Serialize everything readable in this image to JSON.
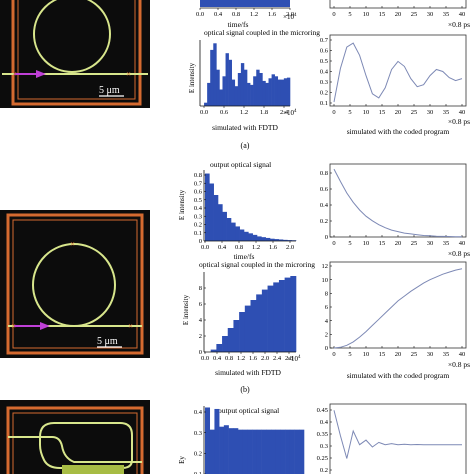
{
  "panels": [
    {
      "caption": "(a)",
      "scale_label": "5 μm",
      "fdtd_bottom_title": "optical signal coupled in the microring",
      "fdtd_bottom_ylabel": "E intensity",
      "fdtd_top_xlabel": "time/fs",
      "fdtd_top_xticks": [
        "0.0",
        "0.4",
        "0.8",
        "1.2",
        "1.6",
        "2.0"
      ],
      "fdtd_top_exp": "×10",
      "fdtd_exp_sup": "4",
      "fdtd_bottom_xticks": [
        "0.0",
        "0.6",
        "1.2",
        "1.8",
        "2.4"
      ],
      "fdtd_bottom_exp": "×10",
      "fdtd_caption": "simulated with FDTD",
      "code_top_xticks": [
        "0",
        "5",
        "10",
        "15",
        "20",
        "25",
        "30",
        "35",
        "40"
      ],
      "code_top_unit": "×0.8 ps",
      "code_bottom_yticks": [
        "0.1",
        "0.2",
        "0.3",
        "0.4",
        "0.5",
        "0.6",
        "0.7"
      ],
      "code_bottom_xticks": [
        "0",
        "5",
        "10",
        "15",
        "20",
        "25",
        "30",
        "35",
        "40"
      ],
      "code_bottom_unit": "×0.8 ps",
      "code_caption": "simulated with the coded program"
    },
    {
      "caption": "(b)",
      "scale_label": "5 μm",
      "fdtd_top_title": "output optical signal",
      "fdtd_top_ylabel": "E intensity",
      "fdtd_top_yticks": [
        "0",
        "0.1",
        "0.2",
        "0.3",
        "0.4",
        "0.5",
        "0.6",
        "0.7",
        "0.8"
      ],
      "fdtd_top_xlabel": "time/fs",
      "fdtd_top_xticks": [
        "0.0",
        "0.4",
        "0.8",
        "1.2",
        "1.6",
        "2.0"
      ],
      "fdtd_bottom_title": "optical signal coupled in the microring",
      "fdtd_bottom_ylabel": "E intensity",
      "fdtd_bottom_yticks": [
        "0",
        "2",
        "4",
        "6",
        "8"
      ],
      "fdtd_bottom_xticks": [
        "0.0",
        "0.4",
        "0.8",
        "1.2",
        "1.6",
        "2.0",
        "2.4",
        "2.8"
      ],
      "fdtd_bottom_exp": "×10",
      "fdtd_exp_sup": "4",
      "fdtd_caption": "simulated with FDTD",
      "code_top_yticks": [
        "0",
        "0.2",
        "0.4",
        "0.6",
        "0.8"
      ],
      "code_top_xticks": [
        "0",
        "5",
        "10",
        "15",
        "20",
        "25",
        "30",
        "35",
        "40"
      ],
      "code_top_unit": "×0.8 ps",
      "code_bottom_yticks": [
        "0",
        "2",
        "4",
        "6",
        "8",
        "10",
        "12"
      ],
      "code_bottom_xticks": [
        "0",
        "5",
        "10",
        "15",
        "20",
        "25",
        "30",
        "35",
        "40"
      ],
      "code_bottom_unit": "×0.8 ps",
      "code_caption": "simulated with the coded program"
    },
    {
      "fdtd_top_title": "output optical signal",
      "fdtd_top_ylabel": "Ey",
      "fdtd_top_yticks": [
        "0.1",
        "0.2",
        "0.3",
        "0.4"
      ],
      "code_top_yticks": [
        "0.2",
        "0.25",
        "0.3",
        "0.35",
        "0.4",
        "0.45"
      ]
    }
  ],
  "chart_data": [
    {
      "type": "area",
      "panel": "a",
      "title": "optical signal coupled in the microring",
      "ylabel": "E intensity",
      "xlabel": "",
      "x_exponent": "×10^4",
      "xlim": [
        0,
        2.8
      ],
      "x": [
        0.0,
        0.1,
        0.2,
        0.3,
        0.4,
        0.5,
        0.6,
        0.7,
        0.8,
        0.9,
        1.0,
        1.1,
        1.2,
        1.3,
        1.4,
        1.5,
        1.6,
        1.7,
        1.8,
        1.9,
        2.0,
        2.1,
        2.2,
        2.3,
        2.4,
        2.5,
        2.6,
        2.7,
        2.8
      ],
      "values": [
        0.0,
        0.05,
        0.35,
        0.85,
        0.95,
        0.55,
        0.25,
        0.45,
        0.8,
        0.7,
        0.4,
        0.3,
        0.5,
        0.65,
        0.55,
        0.35,
        0.32,
        0.45,
        0.55,
        0.5,
        0.38,
        0.35,
        0.42,
        0.48,
        0.45,
        0.4,
        0.4,
        0.42,
        0.43
      ]
    },
    {
      "type": "line",
      "panel": "a",
      "xlabel": "",
      "x_unit": "×0.8 ps",
      "ylim": [
        0.1,
        0.75
      ],
      "xlim": [
        0,
        40
      ],
      "x": [
        0,
        2,
        4,
        6,
        8,
        10,
        12,
        14,
        16,
        18,
        20,
        22,
        24,
        26,
        28,
        30,
        32,
        34,
        36,
        38,
        40
      ],
      "values": [
        0.12,
        0.45,
        0.66,
        0.7,
        0.58,
        0.38,
        0.2,
        0.16,
        0.26,
        0.44,
        0.52,
        0.47,
        0.35,
        0.27,
        0.29,
        0.38,
        0.44,
        0.42,
        0.36,
        0.33,
        0.35
      ]
    },
    {
      "type": "area",
      "panel": "b",
      "title": "output optical signal",
      "ylabel": "E intensity",
      "xlabel": "time/fs",
      "xlim": [
        0,
        2.0
      ],
      "ylim": [
        0,
        0.9
      ],
      "x": [
        0.0,
        0.1,
        0.2,
        0.3,
        0.4,
        0.5,
        0.6,
        0.7,
        0.8,
        0.9,
        1.0,
        1.1,
        1.2,
        1.3,
        1.4,
        1.5,
        1.6,
        1.7,
        1.8,
        1.9,
        2.0
      ],
      "values": [
        0.88,
        0.75,
        0.6,
        0.48,
        0.38,
        0.3,
        0.24,
        0.19,
        0.15,
        0.12,
        0.1,
        0.08,
        0.06,
        0.05,
        0.04,
        0.03,
        0.025,
        0.02,
        0.015,
        0.012,
        0.01
      ]
    },
    {
      "type": "line",
      "panel": "b",
      "xlabel": "",
      "x_unit": "×0.8 ps",
      "ylim": [
        0,
        0.9
      ],
      "xlim": [
        0,
        40
      ],
      "x": [
        0,
        2,
        4,
        6,
        8,
        10,
        12,
        14,
        16,
        18,
        20,
        22,
        24,
        26,
        28,
        30,
        32,
        34,
        36,
        38,
        40
      ],
      "values": [
        0.88,
        0.72,
        0.57,
        0.45,
        0.35,
        0.27,
        0.21,
        0.16,
        0.12,
        0.09,
        0.07,
        0.05,
        0.04,
        0.03,
        0.02,
        0.015,
        0.01,
        0.008,
        0.006,
        0.004,
        0.003
      ]
    },
    {
      "type": "area",
      "panel": "b",
      "title": "optical signal coupled in the microring",
      "ylabel": "E intensity",
      "xlabel": "",
      "x_exponent": "×10^4",
      "xlim": [
        0,
        3.0
      ],
      "ylim": [
        0,
        10
      ],
      "x": [
        0.0,
        0.2,
        0.4,
        0.6,
        0.8,
        1.0,
        1.2,
        1.4,
        1.6,
        1.8,
        2.0,
        2.2,
        2.4,
        2.6,
        2.8,
        3.0
      ],
      "values": [
        0.0,
        0.3,
        1.0,
        2.0,
        3.0,
        4.0,
        5.0,
        5.8,
        6.5,
        7.2,
        7.8,
        8.3,
        8.7,
        9.0,
        9.3,
        9.5
      ]
    },
    {
      "type": "line",
      "panel": "b",
      "xlabel": "",
      "x_unit": "×0.8 ps",
      "ylim": [
        0,
        12
      ],
      "xlim": [
        0,
        40
      ],
      "x": [
        0,
        2,
        4,
        6,
        8,
        10,
        12,
        14,
        16,
        18,
        20,
        22,
        24,
        26,
        28,
        30,
        32,
        34,
        36,
        38,
        40
      ],
      "values": [
        0.0,
        0.1,
        0.4,
        0.9,
        1.6,
        2.4,
        3.3,
        4.2,
        5.1,
        6.0,
        6.9,
        7.6,
        8.3,
        8.9,
        9.5,
        10.0,
        10.4,
        10.8,
        11.1,
        11.4,
        11.6
      ]
    },
    {
      "type": "area",
      "panel": "c",
      "title": "output optical signal",
      "ylabel": "Ey",
      "xlabel": "",
      "ylim": [
        0,
        0.45
      ],
      "x": [
        0,
        1,
        2,
        3,
        4,
        5,
        6,
        7,
        8,
        9,
        10,
        11,
        12,
        13,
        14,
        15,
        16,
        17,
        18,
        19,
        20
      ],
      "values": [
        0.45,
        0.3,
        0.44,
        0.32,
        0.33,
        0.31,
        0.31,
        0.3,
        0.3,
        0.3,
        0.3,
        0.3,
        0.3,
        0.3,
        0.3,
        0.3,
        0.3,
        0.3,
        0.3,
        0.3,
        0.3
      ]
    },
    {
      "type": "line",
      "panel": "c",
      "xlabel": "",
      "ylim": [
        0.2,
        0.47
      ],
      "xlim": [
        0,
        40
      ],
      "x": [
        0,
        2,
        4,
        6,
        8,
        10,
        12,
        14,
        16,
        18,
        20,
        22,
        24,
        26,
        28,
        30,
        32,
        34,
        36,
        38,
        40
      ],
      "values": [
        0.46,
        0.35,
        0.25,
        0.37,
        0.31,
        0.33,
        0.3,
        0.32,
        0.31,
        0.315,
        0.31,
        0.312,
        0.31,
        0.311,
        0.31,
        0.31,
        0.31,
        0.31,
        0.31,
        0.31,
        0.31
      ]
    }
  ],
  "colors": {
    "fill": "#2e4fb3",
    "line": "#7d89b5",
    "ring": "#d8e68c",
    "box": "#d46a30",
    "dark": "#0c0c0c",
    "arrow": "#c040d8"
  }
}
